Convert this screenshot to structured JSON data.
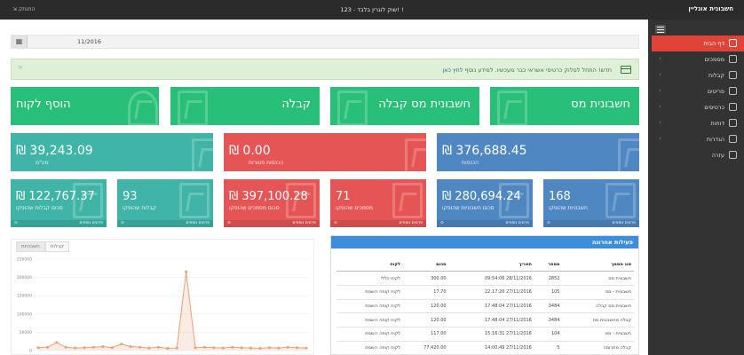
{
  "topbar": {
    "brand": "חשבונית אונליין",
    "account": "123 - שוק לוגרין בלבד! !",
    "logout": "התנתק"
  },
  "sidebar": {
    "items": [
      {
        "label": "דף הבית",
        "icon": "home-icon"
      },
      {
        "label": "מסמכים",
        "icon": "document-icon"
      },
      {
        "label": "קבלות",
        "icon": "receipt-icon"
      },
      {
        "label": "פריטים",
        "icon": "items-icon"
      },
      {
        "label": "כרטיסים",
        "icon": "user-icon"
      },
      {
        "label": "דוחות",
        "icon": "reports-icon"
      },
      {
        "label": "הגדרות",
        "icon": "gear-icon"
      },
      {
        "label": "עזרה",
        "icon": "help-icon"
      }
    ]
  },
  "datebar": {
    "date": "11/2016"
  },
  "alert": {
    "text": "חדש! התחל לסלוק כרטיסי אשראי כבר מעכשיו. למידע נוסף",
    "link": "לחץ כאן",
    "close": "×"
  },
  "actions": [
    "חשבונית מס",
    "חשבונית מס קבלה",
    "קבלה",
    "הוסף לקוח"
  ],
  "big_stats": [
    {
      "value": "₪ 376,688.45",
      "label": "הכנסות"
    },
    {
      "value": "₪ 0.00",
      "label": "הכנסות פטורות"
    },
    {
      "value": "₪ 39,243.09",
      "label": "מע\"מ"
    }
  ],
  "small_stats": [
    {
      "value": "168",
      "label": "חשבוניות שהופקו",
      "foot": "פרטים נוספים"
    },
    {
      "value": "₪ 280,694.24",
      "label": "סכום חשבוניות שהופקו",
      "foot": "פרטים נוספים"
    },
    {
      "value": "71",
      "label": "מסמכים שהופקו",
      "foot": "פרטים נוספים"
    },
    {
      "value": "₪ 397,100.28",
      "label": "סכום מסמכים שהופקו",
      "foot": "פרטים נוספים"
    },
    {
      "value": "93",
      "label": "קבלות שהופקו",
      "foot": "פרטים נוספים"
    },
    {
      "value": "₪ 122,767.37",
      "label": "סכום קבלות שהופקו",
      "foot": "פרטים נוספים"
    }
  ],
  "chart_tabs": [
    "קבלות",
    "חשבוניות"
  ],
  "chart_data": {
    "type": "area",
    "color": "#e8a07a",
    "y_ticks": [
      0,
      50000,
      100000,
      150000,
      200000,
      250000
    ],
    "ylim": [
      0,
      250000
    ],
    "values": [
      8000,
      9000,
      22000,
      9000,
      7000,
      8000,
      9000,
      11000,
      8000,
      18000,
      11000,
      9000,
      7000,
      9000,
      6000,
      7000,
      215000,
      8000,
      9000,
      8000,
      7000,
      9000,
      8000,
      7000,
      6000,
      8000,
      7000,
      9000,
      8000,
      7000
    ]
  },
  "activity": {
    "title": "פעילות אחרונה",
    "columns": [
      "סוג מסמך",
      "מספר",
      "תאריך",
      "סכום",
      "לקוח"
    ],
    "rows": [
      [
        "חשבונית מס",
        "2852",
        "28/11/2016 09:54:06",
        "300.00",
        "לקוח כללי"
      ],
      [
        "חשבונית - מס",
        "105",
        "27/11/2016 22:17:20",
        "17.70",
        "לקוח קופה רושמת"
      ],
      [
        "חשבונית מס קבלה",
        "3484",
        "27/11/2016 17:48:04",
        "120.00",
        "לקוח קופה רושמת"
      ],
      [
        "קבלה מחשבונית מס",
        "3484",
        "27/11/2016 17:48:04",
        "120.00",
        "לקוח קופה רושמת"
      ],
      [
        "חשבונית - מס",
        "104",
        "27/11/2016 15:16:31",
        "117.00",
        "לקוח קופה רושמת"
      ],
      [
        "קבלה מתרומה",
        "5",
        "27/11/2016 14:00:49",
        "77,420.00",
        "לקוח קופה רושמת"
      ]
    ]
  }
}
